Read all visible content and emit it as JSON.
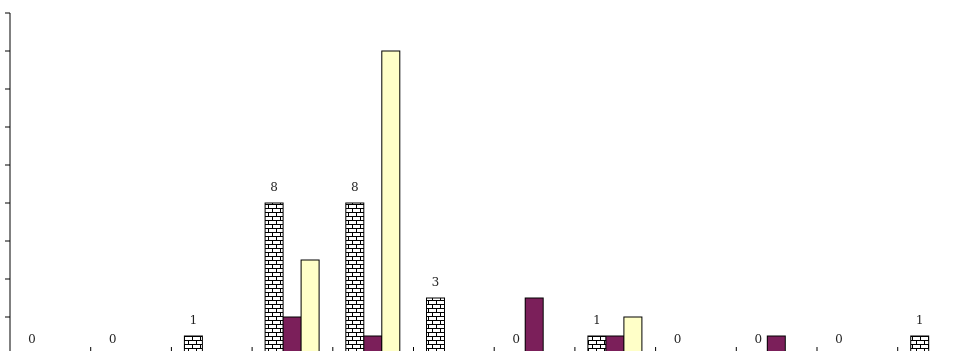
{
  "chart_data": {
    "type": "bar",
    "categories": [
      null,
      null,
      null,
      null,
      null,
      null,
      null,
      null,
      null,
      null,
      null,
      null
    ],
    "series": [
      {
        "color": "#ffffff",
        "pattern": "brick",
        "values": [
          0,
          0,
          1,
          8,
          8,
          3,
          0,
          1,
          0,
          0,
          0,
          1
        ]
      },
      {
        "color": "#7b1f5a",
        "values": [
          0,
          0,
          0,
          2,
          1,
          0,
          3,
          1,
          0,
          1,
          0,
          0
        ]
      },
      {
        "color": "#ffffc8",
        "values": [
          0,
          0,
          0,
          5,
          16,
          0,
          0,
          2,
          0,
          0,
          0,
          0
        ]
      }
    ],
    "ylim": [
      0,
      18
    ],
    "yticks": [
      0,
      2,
      4,
      6,
      8,
      10,
      12,
      14,
      16,
      18
    ]
  }
}
